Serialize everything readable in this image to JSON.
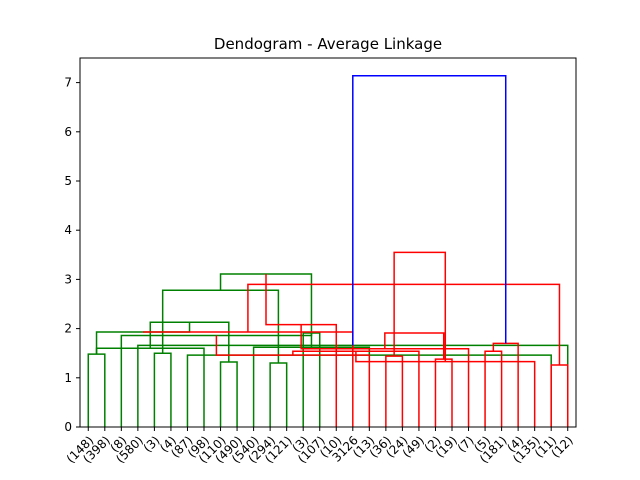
{
  "chart_data": {
    "type": "dendrogram",
    "title": "Dendogram - Average Linkage",
    "xlabel": "",
    "ylabel": "",
    "ylim": [
      0,
      7.5
    ],
    "yticks": [
      0,
      1,
      2,
      3,
      4,
      5,
      6,
      7
    ],
    "grid": false,
    "leaf_labels": [
      "(148)",
      "(398)",
      "(8)",
      "(580)",
      "(3)",
      "(4)",
      "(87)",
      "(98)",
      "(110)",
      "(490)",
      "(540)",
      "(294)",
      "(121)",
      "(3)",
      "(107)",
      "(10)",
      "3126",
      "(13)",
      "(36)",
      "(24)",
      "(49)",
      "(2)",
      "(19)",
      "(7)",
      "(5)",
      "(181)",
      "(4)",
      "(135)",
      "(11)",
      "(12)"
    ],
    "colors": {
      "left_cluster": "#008000",
      "right_cluster": "#ff0000",
      "root": "#0000ff"
    },
    "links": [
      {
        "a": 0,
        "b": 1,
        "h": 1.48,
        "color": "left_cluster"
      },
      {
        "a": 4,
        "b": 5,
        "h": 1.5,
        "color": "left_cluster"
      },
      {
        "a": 6,
        "b": 28,
        "h": 1.46,
        "color": "left_cluster"
      },
      {
        "a": 8,
        "b": 9,
        "h": 1.32,
        "color": "left_cluster"
      },
      {
        "a": 7,
        "b": 30,
        "h": 1.6,
        "color": "left_cluster"
      },
      {
        "a": 11,
        "b": 12,
        "h": 1.3,
        "color": "left_cluster"
      },
      {
        "a": 10,
        "b": 32,
        "h": 1.62,
        "color": "left_cluster"
      },
      {
        "a": 13,
        "b": 14,
        "h": 1.91,
        "color": "left_cluster"
      },
      {
        "a": 33,
        "b": 34,
        "h": 2.13,
        "color": "left_cluster"
      },
      {
        "a": 31,
        "b": 35,
        "h": 2.78,
        "color": "left_cluster"
      },
      {
        "a": 3,
        "b": 29,
        "h": 1.66,
        "color": "left_cluster"
      },
      {
        "a": 2,
        "b": 37,
        "h": 1.86,
        "color": "left_cluster"
      },
      {
        "a": 30,
        "b": 38,
        "h": 1.93,
        "color": "left_cluster"
      },
      {
        "a": 39,
        "b": 36,
        "h": 3.11,
        "color": "left_cluster"
      },
      {
        "a": 18,
        "b": 19,
        "h": 1.44,
        "color": "right_cluster"
      },
      {
        "a": 17,
        "b": 41,
        "h": 1.46,
        "color": "right_cluster"
      },
      {
        "a": 16,
        "b": 42,
        "h": 1.93,
        "color": "right_cluster"
      },
      {
        "a": 15,
        "b": 43,
        "h": 2.08,
        "color": "right_cluster"
      },
      {
        "a": 21,
        "b": 22,
        "h": 1.38,
        "color": "right_cluster"
      },
      {
        "a": 20,
        "b": 45,
        "h": 1.54,
        "color": "right_cluster"
      },
      {
        "a": 24,
        "b": 25,
        "h": 1.54,
        "color": "right_cluster"
      },
      {
        "a": 23,
        "b": 47,
        "h": 1.59,
        "color": "right_cluster"
      },
      {
        "a": 28,
        "b": 29,
        "h": 1.26,
        "color": "right_cluster"
      },
      {
        "a": 27,
        "b": 49,
        "h": 1.33,
        "color": "right_cluster"
      },
      {
        "a": 26,
        "b": 50,
        "h": 1.7,
        "color": "right_cluster"
      },
      {
        "a": 48,
        "b": 51,
        "h": 1.91,
        "color": "right_cluster"
      },
      {
        "a": 46,
        "b": 52,
        "h": 2.9,
        "color": "right_cluster"
      },
      {
        "a": 44,
        "b": 53,
        "h": 3.55,
        "color": "right_cluster"
      },
      {
        "a": 40,
        "b": 54,
        "h": 7.14,
        "color": "root"
      }
    ]
  }
}
